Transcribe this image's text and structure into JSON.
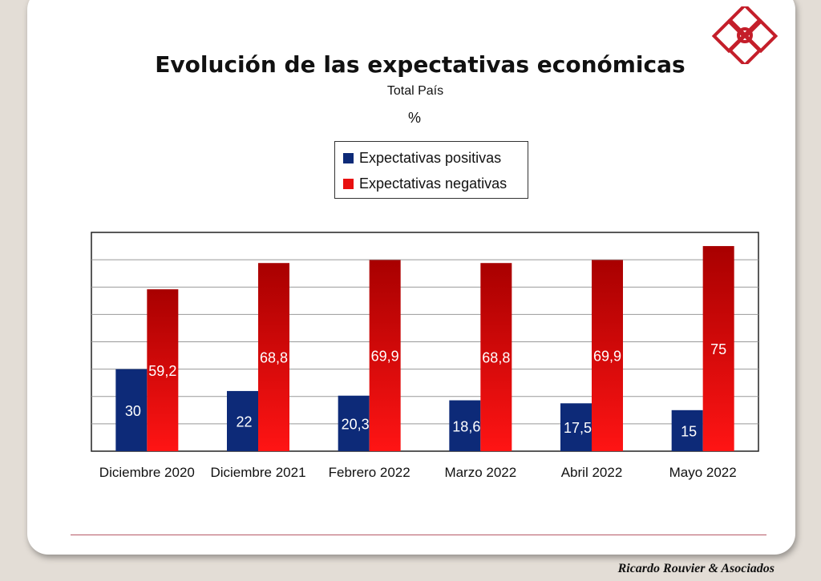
{
  "brand": "Ricardo Rouvier & Asociados",
  "colors": {
    "positive": "#0d2a78",
    "negative_top": "#b00000",
    "negative_bottom": "#ff1010",
    "logo": "#c41e2a"
  },
  "chart_data": {
    "type": "bar",
    "title": "Evolución de las expectativas económicas",
    "subtitle": "Total País",
    "unit": "%",
    "xlabel": "",
    "ylabel": "",
    "ylim": [
      0,
      80
    ],
    "grid": true,
    "legend_position": "top-center",
    "categories": [
      "Diciembre 2020",
      "Diciembre 2021",
      "Febrero 2022",
      "Marzo 2022",
      "Abril 2022",
      "Mayo 2022"
    ],
    "series": [
      {
        "name": "Expectativas positivas",
        "values": [
          30,
          22,
          20.3,
          18.6,
          17.5,
          15
        ],
        "labels": [
          "30",
          "22",
          "20,3",
          "18,6",
          "17,5",
          "15"
        ]
      },
      {
        "name": "Expectativas negativas",
        "values": [
          59.2,
          68.8,
          69.9,
          68.8,
          69.9,
          75
        ],
        "labels": [
          "59,2",
          "68,8",
          "69,9",
          "68,8",
          "69,9",
          "75"
        ]
      }
    ]
  }
}
